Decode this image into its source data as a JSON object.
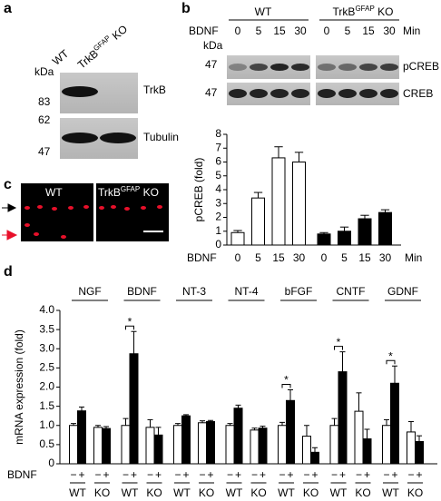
{
  "panel_labels": [
    "a",
    "b",
    "c",
    "d"
  ],
  "blot_a": {
    "columns": [
      "WT",
      {
        "prefix": "TrkB",
        "sup": "GFAP",
        "suffix": " KO"
      }
    ],
    "unit": "kDa",
    "markers": [
      "83",
      "62",
      "47"
    ],
    "rows": [
      "TrkB",
      "Tubulin"
    ]
  },
  "blot_b": {
    "groups": [
      "WT",
      {
        "prefix": "TrkB",
        "sup": "GFAP",
        "suffix": " KO"
      }
    ],
    "treatment_label": "BDNF",
    "times": [
      "0",
      "5",
      "15",
      "30"
    ],
    "unit_label": "Min",
    "unit": "kDa",
    "markers": [
      "47",
      "47"
    ],
    "rows": [
      "pCREB",
      "CREB"
    ]
  },
  "image_c": {
    "columns": [
      "WT",
      {
        "prefix": "TrkB",
        "sup": "GFAP",
        "suffix": " KO"
      }
    ]
  },
  "chart_data": [
    {
      "type": "bar",
      "ylabel": "pCREB (fold)",
      "treatment_label": "BDNF",
      "unit_label": "Min",
      "categories": [
        "0",
        "5",
        "15",
        "30"
      ],
      "ylim": [
        0,
        8
      ],
      "yticks": [
        0,
        1,
        2,
        3,
        4,
        5,
        6,
        7,
        8
      ],
      "series": [
        {
          "color": "#ffffff",
          "values": [
            0.9,
            3.4,
            6.3,
            6.0
          ],
          "errors": [
            0.15,
            0.4,
            0.8,
            0.7
          ]
        },
        {
          "color": "#000000",
          "values": [
            0.8,
            1.0,
            1.9,
            2.35
          ],
          "errors": [
            0.1,
            0.3,
            0.25,
            0.2
          ]
        }
      ]
    },
    {
      "type": "bar",
      "ylabel": "mRNA expression (fold)",
      "treatment_label": "BDNF",
      "categories": [
        "NGF",
        "BDNF",
        "NT-3",
        "NT-4",
        "bFGF",
        "CNTF",
        "GDNF"
      ],
      "ylim": [
        0,
        4
      ],
      "yticks": [
        0,
        0.5,
        {
          "value": 1,
          "label": "1.0"
        },
        1.5,
        {
          "value": 2,
          "label": "2.0"
        },
        2.5,
        {
          "value": 3,
          "label": "3.0"
        },
        3.5,
        {
          "value": 4,
          "label": "4.0"
        }
      ],
      "significance": [
        null,
        "*",
        null,
        null,
        "*",
        "*",
        "*"
      ],
      "series": [
        {
          "name": "WT",
          "treatment": "−",
          "color": "#ffffff",
          "values": [
            1.0,
            1.0,
            1.0,
            1.0,
            1.0,
            1.0,
            1.0
          ],
          "errors": [
            0.05,
            0.18,
            0.05,
            0.05,
            0.08,
            0.18,
            0.15
          ]
        },
        {
          "name": "WT",
          "treatment": "+",
          "color": "#000000",
          "values": [
            1.38,
            2.87,
            1.25,
            1.45,
            1.65,
            2.4,
            2.1
          ],
          "errors": [
            0.1,
            0.58,
            0.03,
            0.08,
            0.28,
            0.52,
            0.45
          ]
        },
        {
          "name": "KO",
          "treatment": "−",
          "color": "#ffffff",
          "values": [
            0.95,
            0.95,
            1.07,
            0.88,
            0.72,
            1.37,
            0.83
          ],
          "errors": [
            0.05,
            0.2,
            0.05,
            0.05,
            0.28,
            0.48,
            0.27
          ]
        },
        {
          "name": "KO",
          "treatment": "+",
          "color": "#000000",
          "values": [
            0.92,
            0.75,
            1.1,
            0.93,
            0.3,
            0.65,
            0.58
          ],
          "errors": [
            0.05,
            0.2,
            0.03,
            0.05,
            0.12,
            0.25,
            0.15
          ]
        }
      ]
    }
  ]
}
